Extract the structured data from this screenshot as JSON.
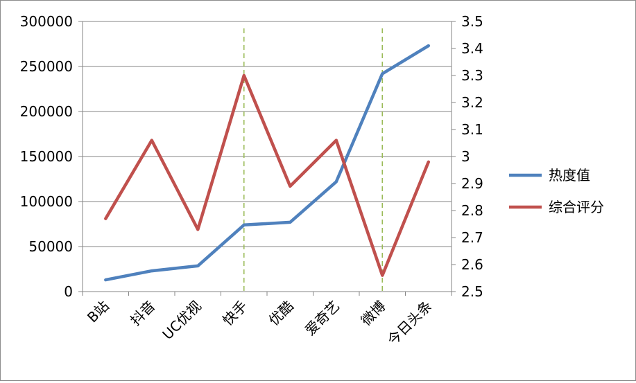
{
  "chart_data": {
    "type": "line",
    "title": "",
    "xlabel": "",
    "ylabel": "",
    "categories": [
      "B站",
      "抖音",
      "UC优视",
      "快手",
      "优酷",
      "爱奇艺",
      "微博",
      "今日头条"
    ],
    "series": [
      {
        "name": "热度值",
        "axis": "left",
        "color": "#4f81bd",
        "values": [
          13000,
          23000,
          28500,
          74000,
          77000,
          122000,
          242000,
          273000
        ]
      },
      {
        "name": "综合评分",
        "axis": "right",
        "color": "#c0504d",
        "values": [
          2.77,
          3.06,
          2.73,
          3.3,
          2.89,
          3.06,
          2.56,
          2.98
        ]
      }
    ],
    "y_left": {
      "ylim": [
        0,
        300000
      ],
      "ticks": [
        "0",
        "50000",
        "100000",
        "150000",
        "200000",
        "250000",
        "300000"
      ]
    },
    "y_right": {
      "ylim": [
        2.5,
        3.5
      ],
      "ticks": [
        "2.5",
        "2.6",
        "2.7",
        "2.8",
        "2.9",
        "3",
        "3.1",
        "3.2",
        "3.3",
        "3.4",
        "3.5"
      ]
    },
    "grid": "horizontal",
    "reference_lines": [
      {
        "category": "快手",
        "style": "dashed",
        "color": "#9bbb59"
      },
      {
        "category": "微博",
        "style": "dashed",
        "color": "#9bbb59"
      }
    ],
    "legend": {
      "position": "right",
      "entries": [
        "热度值",
        "综合评分"
      ]
    }
  }
}
